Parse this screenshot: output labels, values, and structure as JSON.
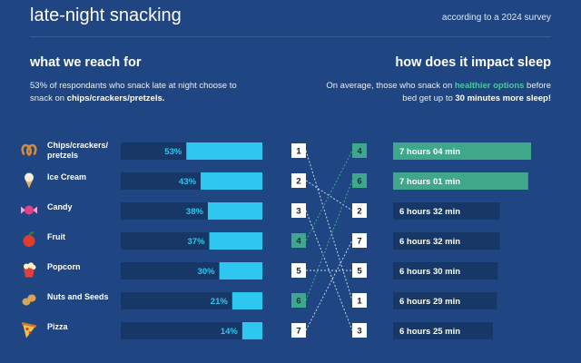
{
  "header": {
    "title": "late-night snacking",
    "source": "according to a 2024 survey"
  },
  "left_section": {
    "heading": "what we reach for",
    "desc_pre": "53% of respondants who snack late at night choose to snack on ",
    "desc_bold": "chips/crackers/pretzels."
  },
  "right_section": {
    "heading": "how does it impact sleep",
    "desc_pre": "On average, those who snack on ",
    "desc_green": "healthier options",
    "desc_mid": " before bed get up to ",
    "desc_bold": "30 minutes more sleep!"
  },
  "colors": {
    "background": "#1f4682",
    "bar_track": "#173866",
    "bar_fill": "#2ec7f0",
    "percent_text": "#2ec7f0",
    "healthy": "#3fa88a",
    "sleep_bar": "#173866",
    "rank_box": "#ffffff"
  },
  "chart_data": [
    {
      "type": "bar",
      "orientation": "horizontal",
      "categories": [
        "Chips/crackers/ pretzels",
        "Ice Cream",
        "Candy",
        "Fruit",
        "Popcorn",
        "Nuts and Seeds",
        "Pizza"
      ],
      "icons": [
        "pretzel-icon",
        "ice-cream-icon",
        "candy-icon",
        "apple-icon",
        "popcorn-icon",
        "peanut-icon",
        "pizza-icon"
      ],
      "values": [
        53,
        43,
        38,
        37,
        30,
        21,
        14
      ],
      "value_labels": [
        "53%",
        "43%",
        "38%",
        "37%",
        "30%",
        "21%",
        "14%"
      ],
      "unit": "%",
      "xlim": [
        0,
        100
      ]
    },
    {
      "type": "slope",
      "left_ranks": [
        "1",
        "2",
        "3",
        "4",
        "5",
        "6",
        "7"
      ],
      "right_ranks": [
        "4",
        "6",
        "2",
        "7",
        "5",
        "1",
        "3"
      ],
      "healthy_left_ranks": [
        "4",
        "6"
      ]
    },
    {
      "type": "bar",
      "orientation": "horizontal",
      "value_labels": [
        "7 hours 04 min",
        "7 hours 01 min",
        "6 hours 32 min",
        "6 hours 32 min",
        "6 hours 30 min",
        "6 hours 29 min",
        "6 hours 25 min"
      ],
      "values_min": [
        424,
        421,
        392,
        392,
        390,
        389,
        385
      ],
      "healthy": [
        true,
        true,
        false,
        false,
        false,
        false,
        false
      ],
      "unit": "minutes"
    }
  ]
}
